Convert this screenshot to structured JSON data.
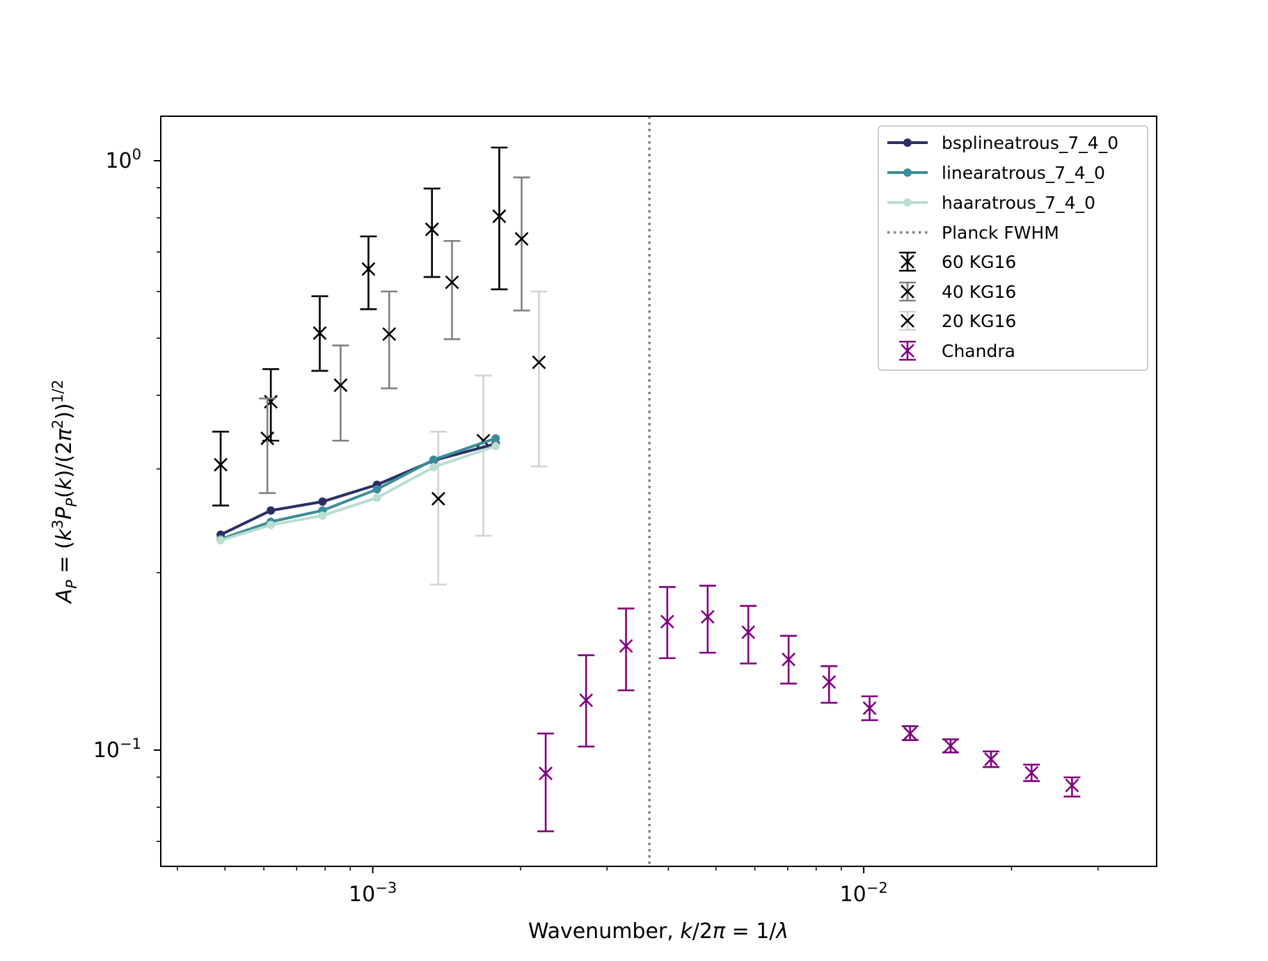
{
  "chart_data": {
    "type": "scatter",
    "title": "",
    "xlabel_parts": [
      "Wavenumber, ",
      "k",
      "/2",
      "π",
      " = 1/",
      "λ"
    ],
    "ylabel_parts": [
      "A",
      "P",
      " = (",
      "k",
      "3",
      "P",
      "P",
      "(",
      "k",
      ")/(2",
      "π",
      "2",
      "))",
      "1/2"
    ],
    "xscale": "log",
    "yscale": "log",
    "xlim": [
      0.00037,
      0.0395
    ],
    "ylim": [
      0.0635,
      1.19
    ],
    "xticks": [
      {
        "value": 0.001,
        "base": "10",
        "exp": "−3"
      },
      {
        "value": 0.01,
        "base": "10",
        "exp": "−2"
      }
    ],
    "yticks": [
      {
        "value": 0.1,
        "base": "10",
        "exp": "−1"
      },
      {
        "value": 1.0,
        "base": "10",
        "exp": "0"
      }
    ],
    "grid": false,
    "legend_position": "top-right",
    "lines": [
      {
        "name": "bsplineatrous_7_4_0",
        "color": "#2b2f65",
        "x": [
          0.00049,
          0.00062,
          0.00079,
          0.00102,
          0.00133,
          0.00178
        ],
        "y": [
          0.232,
          0.255,
          0.264,
          0.282,
          0.31,
          0.331
        ]
      },
      {
        "name": "linearatrous_7_4_0",
        "color": "#3a8c97",
        "x": [
          0.00049,
          0.00062,
          0.00079,
          0.00102,
          0.00133,
          0.00178
        ],
        "y": [
          0.228,
          0.244,
          0.255,
          0.277,
          0.311,
          0.338
        ]
      },
      {
        "name": "haaratrous_7_4_0",
        "color": "#b9ddd2",
        "x": [
          0.00049,
          0.00062,
          0.00079,
          0.00102,
          0.00133,
          0.00178
        ],
        "y": [
          0.227,
          0.241,
          0.25,
          0.268,
          0.302,
          0.328
        ]
      }
    ],
    "vline": {
      "name": "Planck FWHM",
      "x": 0.00366,
      "color": "#808080"
    },
    "errorbar_series": [
      {
        "name": "60 KG16",
        "color": "#000000",
        "x": [
          0.00049,
          0.00062,
          0.00078,
          0.00098,
          0.00132,
          0.00181
        ],
        "y": [
          0.305,
          0.39,
          0.51,
          0.655,
          0.765,
          0.805
        ],
        "ylo": [
          0.26,
          0.335,
          0.44,
          0.56,
          0.635,
          0.605
        ],
        "yhi": [
          0.347,
          0.443,
          0.589,
          0.744,
          0.897,
          1.053
        ]
      },
      {
        "name": "40 KG16",
        "color": "#808080",
        "marker_color": "#000000",
        "x": [
          0.00061,
          0.00086,
          0.00108,
          0.00145,
          0.00201
        ],
        "y": [
          0.338,
          0.416,
          0.508,
          0.622,
          0.737
        ],
        "ylo": [
          0.273,
          0.335,
          0.411,
          0.498,
          0.557
        ],
        "yhi": [
          0.395,
          0.486,
          0.6,
          0.731,
          0.937
        ]
      },
      {
        "name": "20 KG16",
        "color": "#d3d3d3",
        "marker_color": "#000000",
        "x": [
          0.00136,
          0.00168,
          0.00218
        ],
        "y": [
          0.267,
          0.335,
          0.455
        ],
        "ylo": [
          0.191,
          0.231,
          0.303
        ],
        "yhi": [
          0.347,
          0.432,
          0.6
        ]
      },
      {
        "name": "Chandra",
        "color": "#800080",
        "x": [
          0.00225,
          0.00272,
          0.00328,
          0.00398,
          0.00481,
          0.00582,
          0.00703,
          0.0085,
          0.01028,
          0.01243,
          0.01503,
          0.01817,
          0.02197,
          0.02656
        ],
        "y": [
          0.0913,
          0.1215,
          0.1502,
          0.1652,
          0.1683,
          0.1585,
          0.1425,
          0.1305,
          0.1178,
          0.1067,
          0.1017,
          0.0965,
          0.0915,
          0.0871
        ],
        "ylo": [
          0.0728,
          0.1014,
          0.1263,
          0.1432,
          0.1463,
          0.1403,
          0.1297,
          0.1203,
          0.1124,
          0.104,
          0.0991,
          0.0936,
          0.0886,
          0.0834
        ],
        "yhi": [
          0.1067,
          0.1449,
          0.1739,
          0.1891,
          0.1901,
          0.1757,
          0.1563,
          0.1388,
          0.1234,
          0.1098,
          0.1043,
          0.0995,
          0.0945,
          0.0899
        ]
      }
    ]
  }
}
